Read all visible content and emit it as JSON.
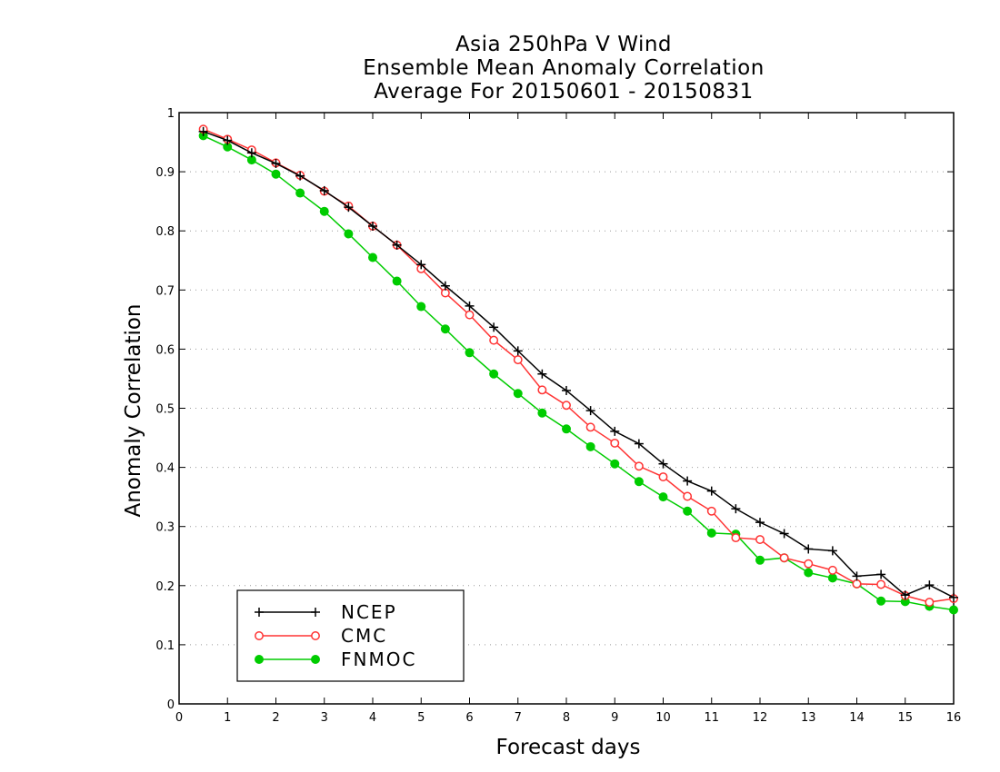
{
  "chart_data": {
    "type": "line",
    "title": [
      "Asia 250hPa V Wind",
      "Ensemble Mean Anomaly Correlation",
      "Average For 20150601 - 20150831"
    ],
    "xlabel": "Forecast days",
    "ylabel": "Anomaly Correlation",
    "xlim": [
      0,
      16
    ],
    "ylim": [
      0,
      1
    ],
    "xticks": [
      0,
      1,
      2,
      3,
      4,
      5,
      6,
      7,
      8,
      9,
      10,
      11,
      12,
      13,
      14,
      15,
      16
    ],
    "yticks": [
      0,
      0.1,
      0.2,
      0.3,
      0.4,
      0.5,
      0.6,
      0.7,
      0.8,
      0.9,
      1
    ],
    "ytick_labels": [
      "0",
      "0.1",
      "0.2",
      "0.3",
      "0.4",
      "0.5",
      "0.6",
      "0.7",
      "0.8",
      "0.9",
      "1"
    ],
    "grid": "horizontal-dotted",
    "legend_position": "bottom-left",
    "x": [
      0.5,
      1,
      1.5,
      2,
      2.5,
      3,
      3.5,
      4,
      4.5,
      5,
      5.5,
      6,
      6.5,
      7,
      7.5,
      8,
      8.5,
      9,
      9.5,
      10,
      10.5,
      11,
      11.5,
      12,
      12.5,
      13,
      13.5,
      14,
      14.5,
      15,
      15.5,
      16
    ],
    "series": [
      {
        "name": "NCEP",
        "color": "#000000",
        "marker": "plus",
        "values": [
          0.968,
          0.953,
          0.932,
          0.914,
          0.893,
          0.868,
          0.84,
          0.808,
          0.776,
          0.743,
          0.707,
          0.673,
          0.637,
          0.597,
          0.558,
          0.53,
          0.496,
          0.461,
          0.44,
          0.406,
          0.377,
          0.36,
          0.33,
          0.307,
          0.288,
          0.262,
          0.259,
          0.216,
          0.219,
          0.184,
          0.201,
          0.18
        ]
      },
      {
        "name": "CMC",
        "color": "#ff3333",
        "marker": "open-circle",
        "values": [
          0.972,
          0.955,
          0.937,
          0.915,
          0.894,
          0.867,
          0.842,
          0.808,
          0.776,
          0.736,
          0.695,
          0.658,
          0.615,
          0.582,
          0.531,
          0.505,
          0.468,
          0.441,
          0.402,
          0.384,
          0.351,
          0.326,
          0.281,
          0.278,
          0.247,
          0.237,
          0.226,
          0.203,
          0.202,
          0.183,
          0.172,
          0.178
        ]
      },
      {
        "name": "FNMOC",
        "color": "#00cc00",
        "marker": "filled-circle",
        "values": [
          0.961,
          0.942,
          0.92,
          0.896,
          0.864,
          0.833,
          0.795,
          0.755,
          0.715,
          0.672,
          0.634,
          0.594,
          0.558,
          0.525,
          0.492,
          0.465,
          0.435,
          0.406,
          0.376,
          0.35,
          0.326,
          0.289,
          0.287,
          0.243,
          0.247,
          0.222,
          0.213,
          0.203,
          0.174,
          0.173,
          0.165,
          0.159
        ]
      }
    ]
  }
}
